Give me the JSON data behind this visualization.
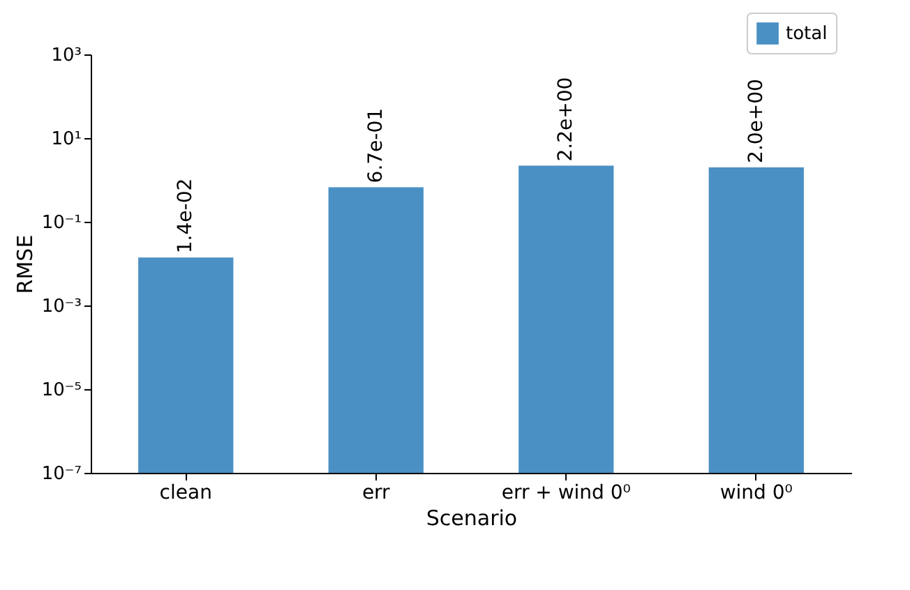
{
  "chart_data": {
    "type": "bar",
    "xlabel": "Scenario",
    "ylabel": "RMSE",
    "categories": [
      "clean",
      "err",
      "err + wind 0⁰",
      "wind 0⁰"
    ],
    "series": [
      {
        "name": "total",
        "color": "#4a90c4",
        "values": [
          0.014,
          0.67,
          2.2,
          2.0
        ],
        "value_labels": [
          "1.4e-02",
          "6.7e-01",
          "2.2e+00",
          "2.0e+00"
        ]
      }
    ],
    "log": "y",
    "ylim": [
      1e-07,
      1000
    ],
    "yticks": [
      {
        "value": 1e-07,
        "label": "10⁻⁷"
      },
      {
        "value": 1e-05,
        "label": "10⁻⁵"
      },
      {
        "value": 0.001,
        "label": "10⁻³"
      },
      {
        "value": 0.1,
        "label": "10⁻¹"
      },
      {
        "value": 10,
        "label": "10¹"
      },
      {
        "value": 1000,
        "label": "10³"
      }
    ],
    "grid": false,
    "legend": "top right"
  }
}
